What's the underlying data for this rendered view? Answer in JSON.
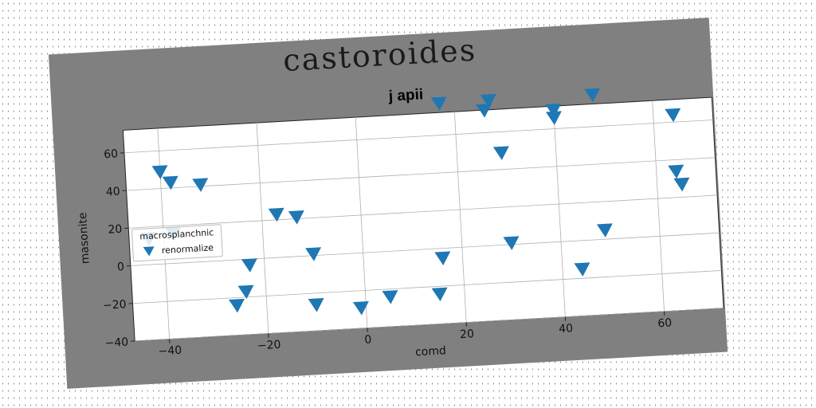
{
  "figure": {
    "suptitle": "castoroides"
  },
  "chart_data": {
    "type": "scatter",
    "title": "j apii",
    "xlabel": "comd",
    "ylabel": "masonite",
    "xlim": [
      -47,
      72
    ],
    "ylim": [
      -40,
      72
    ],
    "xticks": [
      -40,
      -20,
      0,
      20,
      40,
      60
    ],
    "yticks": [
      -40,
      -20,
      0,
      20,
      40,
      60
    ],
    "grid": true,
    "legend": {
      "title": "macrosplanchnic",
      "placement": "center-left"
    },
    "series": [
      {
        "name": "renormalize",
        "marker": "triangle-down",
        "color": "#1f77b4",
        "points": [
          [
            -40,
            49
          ],
          [
            -38,
            43
          ],
          [
            -32,
            41
          ],
          [
            -43,
            14
          ],
          [
            -38,
            16
          ],
          [
            -17,
            23
          ],
          [
            -13,
            21
          ],
          [
            -23,
            -3
          ],
          [
            -24,
            -17
          ],
          [
            -26,
            -24
          ],
          [
            -10,
            1
          ],
          [
            -10,
            -26
          ],
          [
            -1,
            -29
          ],
          [
            5,
            -24
          ],
          [
            15,
            -24
          ],
          [
            16,
            -5
          ],
          [
            17,
            77
          ],
          [
            26,
            72
          ],
          [
            27,
            77
          ],
          [
            29,
            49
          ],
          [
            30,
            1
          ],
          [
            40,
            70
          ],
          [
            40,
            66
          ],
          [
            44,
            -15
          ],
          [
            48,
            77
          ],
          [
            49,
            5
          ],
          [
            64,
            64
          ],
          [
            64,
            34
          ],
          [
            65,
            27
          ]
        ]
      }
    ]
  }
}
